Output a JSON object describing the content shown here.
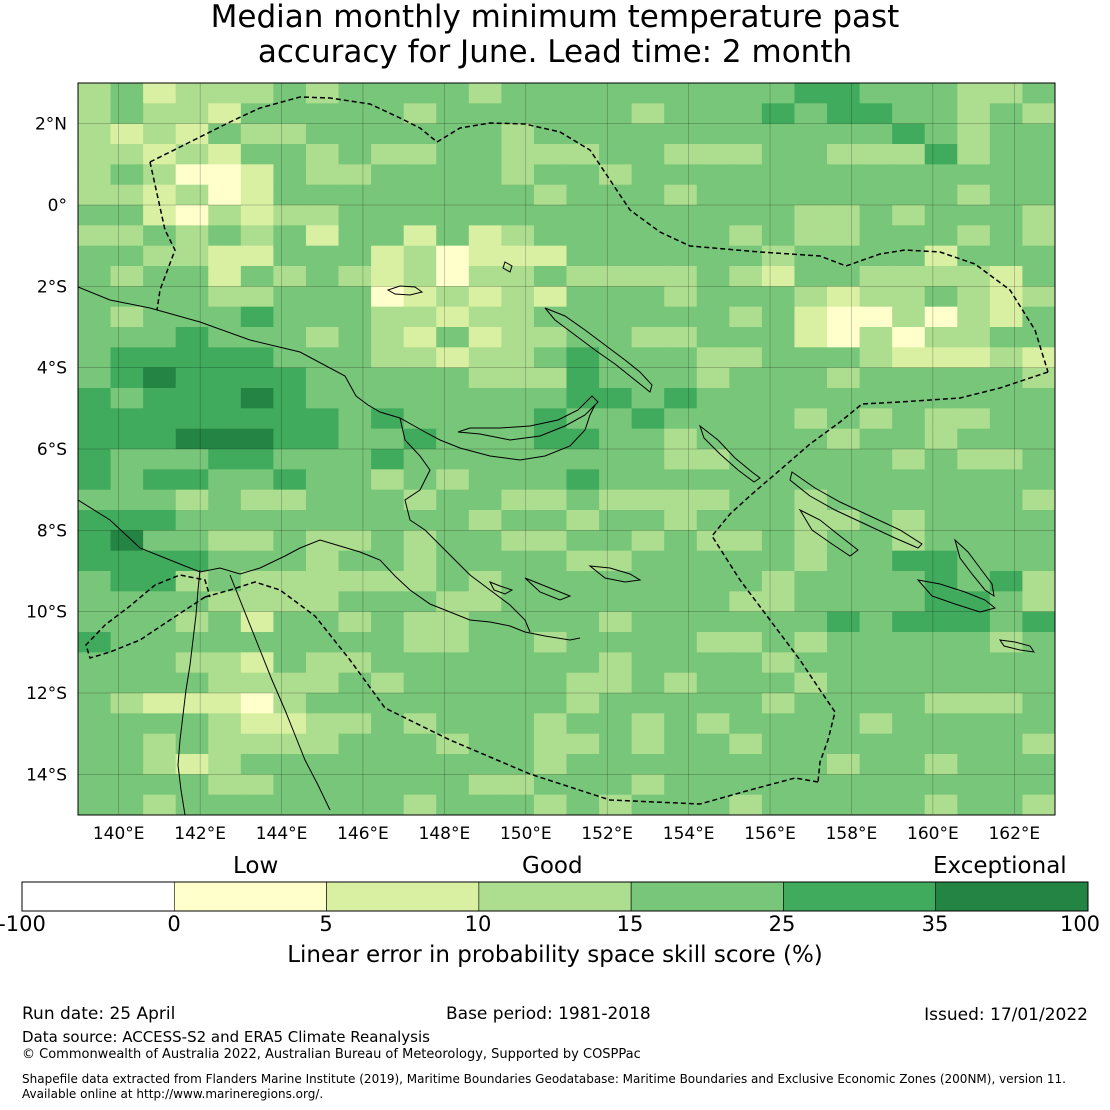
{
  "title": {
    "line1": "Median monthly minimum temperature past",
    "line2": "accuracy for June. Lead time: 2 month"
  },
  "map": {
    "lon_ticks": [
      "140°E",
      "142°E",
      "144°E",
      "146°E",
      "148°E",
      "150°E",
      "152°E",
      "154°E",
      "156°E",
      "158°E",
      "160°E",
      "162°E"
    ],
    "lat_ticks": [
      "2°N",
      "0°",
      "2°S",
      "4°S",
      "6°S",
      "8°S",
      "10°S",
      "12°S",
      "14°S"
    ],
    "lon_range": [
      139,
      163
    ],
    "lat_range": [
      -15,
      3
    ],
    "grid": true
  },
  "colorbar": {
    "categories": {
      "low": "Low",
      "good": "Good",
      "exceptional": "Exceptional"
    },
    "tick_labels": [
      "-100",
      "0",
      "5",
      "10",
      "15",
      "25",
      "35",
      "100"
    ],
    "bins": [
      {
        "from": -100,
        "to": 0,
        "color": "#ffffff"
      },
      {
        "from": 0,
        "to": 5,
        "color": "#ffffcc"
      },
      {
        "from": 5,
        "to": 10,
        "color": "#d9f0a3"
      },
      {
        "from": 10,
        "to": 15,
        "color": "#addd8e"
      },
      {
        "from": 15,
        "to": 25,
        "color": "#78c679"
      },
      {
        "from": 25,
        "to": 35,
        "color": "#41ab5d"
      },
      {
        "from": 35,
        "to": 100,
        "color": "#238443"
      }
    ],
    "label": "Linear error in probability space skill score (%)"
  },
  "footer": {
    "run_date": "Run date: 25 April",
    "base_period": "Base period: 1981-2018",
    "issued": "Issued: 17/01/2022",
    "data_source": "Data source: ACCESS-S2 and ERA5 Climate Reanalysis",
    "copyright": "© Commonwealth of Australia 2022, Australian Bureau of Meteorology, Supported by COSPPac",
    "shapefile_line1": "Shapefile data extracted from Flanders Marine Institute (2019), Maritime Boundaries Geodatabase: Maritime Boundaries and Exclusive Economic Zones (200NM), version 11.",
    "shapefile_line2": "Available online at http://www.marineregions.org/."
  }
}
